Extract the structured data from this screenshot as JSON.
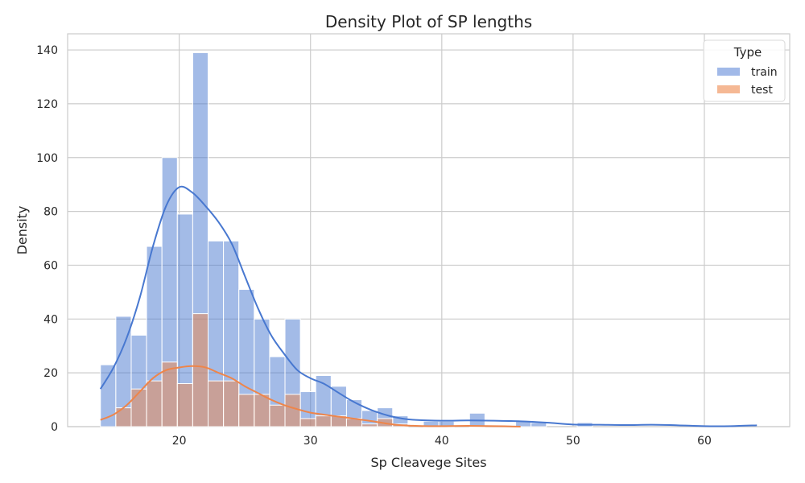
{
  "chart_data": {
    "type": "histogram",
    "title": "Density Plot of SP lengths",
    "xlabel": "Sp Cleavege Sites",
    "ylabel": "Density",
    "xlim": [
      11.5,
      66.5
    ],
    "ylim": [
      0,
      146
    ],
    "x_ticks": [
      20,
      30,
      40,
      50,
      60
    ],
    "y_ticks": [
      0,
      20,
      40,
      60,
      80,
      100,
      120,
      140
    ],
    "grid": true,
    "bin_start": 14,
    "bin_width": 1.1714,
    "legend": {
      "title": "Type",
      "position": "top-right",
      "entries": [
        {
          "label": "train",
          "color": "#4878d0"
        },
        {
          "label": "test",
          "color": "#ee854a"
        }
      ]
    },
    "series": [
      {
        "name": "train",
        "color": "#4878d0",
        "bar_color": "#a1b9e8",
        "counts": [
          23,
          41,
          34,
          67,
          100,
          79,
          139,
          69,
          69,
          51,
          40,
          26,
          40,
          13,
          19,
          15,
          10,
          6,
          7,
          4,
          0,
          2,
          2,
          0,
          5,
          0,
          0,
          2,
          1.5,
          0,
          0,
          1.5,
          0,
          0,
          0,
          0,
          0,
          0,
          0,
          0,
          0.5
        ],
        "kde": [
          [
            14,
            14
          ],
          [
            15,
            22
          ],
          [
            16,
            33
          ],
          [
            17,
            48
          ],
          [
            18,
            67
          ],
          [
            19,
            82
          ],
          [
            20,
            89
          ],
          [
            21,
            87
          ],
          [
            22,
            82
          ],
          [
            23,
            76
          ],
          [
            24,
            68
          ],
          [
            25,
            56
          ],
          [
            26,
            44
          ],
          [
            27,
            34
          ],
          [
            28,
            27
          ],
          [
            29,
            21
          ],
          [
            30,
            18
          ],
          [
            31,
            16
          ],
          [
            32,
            13
          ],
          [
            33,
            10
          ],
          [
            34,
            7.5
          ],
          [
            35,
            5.5
          ],
          [
            36,
            4
          ],
          [
            37,
            3
          ],
          [
            38,
            2.5
          ],
          [
            40,
            2.2
          ],
          [
            42,
            2.3
          ],
          [
            44,
            2.2
          ],
          [
            46,
            2
          ],
          [
            48,
            1.5
          ],
          [
            50,
            0.8
          ],
          [
            52,
            0.7
          ],
          [
            54,
            0.6
          ],
          [
            56,
            0.7
          ],
          [
            58,
            0.5
          ],
          [
            60,
            0.2
          ],
          [
            62,
            0.2
          ],
          [
            64,
            0.5
          ]
        ]
      },
      {
        "name": "test",
        "color": "#ee854a",
        "bar_color": "#f5b894",
        "counts": [
          0,
          7,
          14,
          17,
          24,
          16,
          42,
          17,
          17,
          12,
          12,
          8,
          12,
          3,
          4,
          4,
          3,
          1,
          3,
          1,
          0,
          0,
          0,
          0,
          0,
          0,
          0,
          0,
          0,
          0,
          0,
          0,
          0,
          0,
          0,
          0,
          0,
          0,
          0,
          0,
          0
        ],
        "kde": [
          [
            14,
            2.5
          ],
          [
            15,
            4.5
          ],
          [
            16,
            8
          ],
          [
            17,
            13
          ],
          [
            18,
            18
          ],
          [
            19,
            21
          ],
          [
            20,
            22
          ],
          [
            21,
            22.5
          ],
          [
            22,
            22
          ],
          [
            23,
            20
          ],
          [
            24,
            18
          ],
          [
            25,
            15
          ],
          [
            26,
            12.5
          ],
          [
            27,
            10
          ],
          [
            28,
            8
          ],
          [
            29,
            6.5
          ],
          [
            30,
            5.2
          ],
          [
            31,
            4.5
          ],
          [
            32,
            3.8
          ],
          [
            33,
            3.2
          ],
          [
            34,
            2.5
          ],
          [
            35,
            1.8
          ],
          [
            36,
            1
          ],
          [
            37,
            0.5
          ],
          [
            38,
            0.3
          ],
          [
            39,
            0.2
          ],
          [
            40,
            0.2
          ],
          [
            42,
            0.3
          ],
          [
            44,
            0.2
          ],
          [
            46,
            0
          ]
        ]
      }
    ]
  }
}
